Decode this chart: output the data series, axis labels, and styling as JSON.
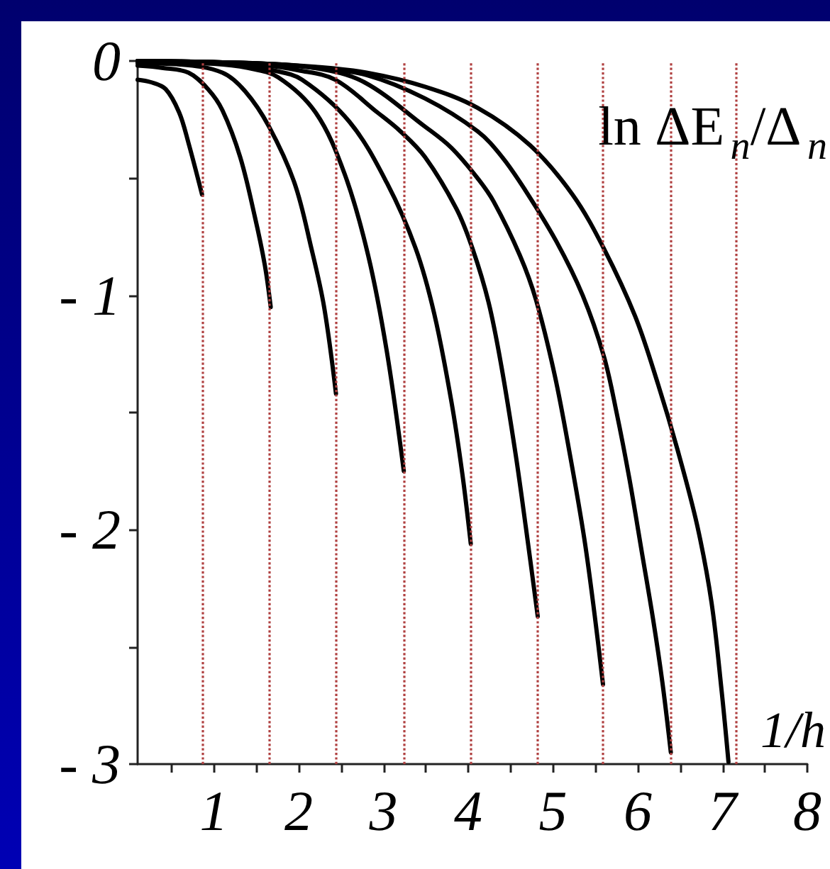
{
  "chart_data": {
    "type": "line",
    "xlabel": "1/h",
    "ylabel": "ln ΔE$_{n}$/Δ$_{n}$",
    "xlim": [
      0.1,
      8
    ],
    "ylim": [
      -3,
      0
    ],
    "xticks": [
      {
        "value": 0.5,
        "label": null
      },
      1,
      {
        "value": 1.5,
        "label": null
      },
      2,
      {
        "value": 2.5,
        "label": null
      },
      3,
      {
        "value": 3.5,
        "label": null
      },
      4,
      {
        "value": 4.5,
        "label": null
      },
      5,
      {
        "value": 5.5,
        "label": null
      },
      6,
      {
        "value": 6.5,
        "label": null
      },
      7,
      {
        "value": 7.5,
        "label": null
      },
      8
    ],
    "yticks": [
      {
        "value": -3,
        "label": "- 3"
      },
      {
        "value": -2.5,
        "label": null
      },
      {
        "value": -2,
        "label": "- 2"
      },
      {
        "value": -1.5,
        "label": null
      },
      {
        "value": -1,
        "label": "- 1"
      },
      {
        "value": -0.5,
        "label": null
      },
      0
    ],
    "ref_lines": [
      {
        "axis": "x",
        "value": 0.86,
        "color": "#b04040",
        "line_style": "dotted"
      },
      {
        "axis": "x",
        "value": 1.66,
        "color": "#b04040",
        "line_style": "dotted"
      },
      {
        "axis": "x",
        "value": 2.44,
        "color": "#b04040",
        "line_style": "dotted"
      },
      {
        "axis": "x",
        "value": 3.24,
        "color": "#b04040",
        "line_style": "dotted"
      },
      {
        "axis": "x",
        "value": 4.03,
        "color": "#b04040",
        "line_style": "dotted"
      },
      {
        "axis": "x",
        "value": 4.82,
        "color": "#b04040",
        "line_style": "dotted"
      },
      {
        "axis": "x",
        "value": 5.59,
        "color": "#b04040",
        "line_style": "dotted"
      },
      {
        "axis": "x",
        "value": 6.39,
        "color": "#b04040",
        "line_style": "dotted"
      },
      {
        "axis": "x",
        "value": 7.16,
        "color": "#b04040",
        "line_style": "dotted"
      }
    ],
    "series": [
      {
        "color": "#000000",
        "x": [
          0.1,
          0.25,
          0.43,
          0.59,
          0.7,
          0.86
        ],
        "values": [
          -0.08,
          -0.09,
          -0.12,
          -0.22,
          -0.35,
          -0.57
        ]
      },
      {
        "color": "#000000",
        "x": [
          0.1,
          0.4,
          0.7,
          0.93,
          1.1,
          1.31,
          1.48,
          1.6,
          1.67
        ],
        "values": [
          -0.02,
          -0.03,
          -0.05,
          -0.12,
          -0.21,
          -0.41,
          -0.66,
          -0.87,
          -1.05
        ]
      },
      {
        "color": "#000000",
        "x": [
          0.1,
          0.6,
          1.1,
          1.37,
          1.65,
          1.95,
          2.15,
          2.3,
          2.44
        ],
        "values": [
          -0.01,
          -0.015,
          -0.05,
          -0.13,
          -0.28,
          -0.52,
          -0.8,
          -1.05,
          -1.42
        ]
      },
      {
        "color": "#000000",
        "x": [
          0.1,
          1.0,
          1.4,
          1.76,
          2.2,
          2.54,
          2.82,
          3.04,
          3.24
        ],
        "values": [
          -0.005,
          -0.012,
          -0.03,
          -0.07,
          -0.22,
          -0.48,
          -0.83,
          -1.24,
          -1.75
        ]
      },
      {
        "color": "#000000",
        "x": [
          0.1,
          1.2,
          1.7,
          2.04,
          2.6,
          3.04,
          3.38,
          3.6,
          3.8,
          3.93,
          4.03
        ],
        "values": [
          0,
          -0.01,
          -0.04,
          -0.08,
          -0.26,
          -0.52,
          -0.8,
          -1.08,
          -1.45,
          -1.76,
          -2.06
        ]
      },
      {
        "color": "#000000",
        "x": [
          0.1,
          1.6,
          2.0,
          2.43,
          2.93,
          3.2,
          3.49,
          3.86,
          4.05,
          4.24,
          4.39,
          4.56,
          4.68,
          4.82
        ],
        "values": [
          0,
          -0.02,
          -0.04,
          -0.08,
          -0.22,
          -0.3,
          -0.41,
          -0.63,
          -0.8,
          -1.03,
          -1.3,
          -1.68,
          -1.99,
          -2.37
        ]
      },
      {
        "color": "#000000",
        "x": [
          0.1,
          1.5,
          2.2,
          2.77,
          3.49,
          3.8,
          4.11,
          4.3,
          4.61,
          4.8,
          5.02,
          5.2,
          5.37,
          5.49,
          5.59
        ],
        "values": [
          0,
          -0.01,
          -0.03,
          -0.09,
          -0.28,
          -0.37,
          -0.5,
          -0.6,
          -0.83,
          -1.02,
          -1.34,
          -1.68,
          -2.04,
          -2.36,
          -2.66
        ]
      },
      {
        "color": "#000000",
        "x": [
          0.1,
          1.5,
          2.2,
          2.8,
          3.49,
          4.11,
          4.4,
          4.67,
          5.04,
          5.35,
          5.6,
          5.75,
          5.9,
          6.05,
          6.18,
          6.29,
          6.39
        ],
        "values": [
          0,
          -0.01,
          -0.03,
          -0.06,
          -0.16,
          -0.3,
          -0.41,
          -0.55,
          -0.77,
          -1.0,
          -1.26,
          -1.5,
          -1.78,
          -2.1,
          -2.38,
          -2.65,
          -2.95
        ]
      },
      {
        "color": "#000000",
        "x": [
          0.1,
          1.5,
          2.2,
          2.8,
          3.49,
          4.11,
          4.73,
          5.23,
          5.6,
          5.97,
          6.24,
          6.47,
          6.7,
          6.87,
          6.99,
          7.07
        ],
        "values": [
          0,
          -0.01,
          -0.025,
          -0.05,
          -0.11,
          -0.2,
          -0.36,
          -0.57,
          -0.8,
          -1.09,
          -1.38,
          -1.66,
          -1.98,
          -2.31,
          -2.69,
          -2.99
        ]
      }
    ]
  }
}
